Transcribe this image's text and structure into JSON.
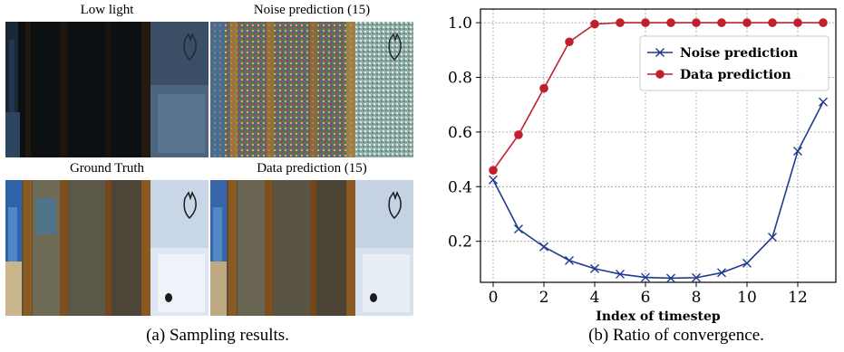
{
  "left_panel": {
    "images": [
      {
        "title": "Low light"
      },
      {
        "title": "Noise prediction (15)"
      },
      {
        "title": "Ground Truth"
      },
      {
        "title": "Data prediction (15)"
      }
    ],
    "caption": "(a) Sampling results."
  },
  "right_panel": {
    "caption": "(b) Ratio of convergence."
  },
  "chart_data": {
    "type": "line",
    "xlabel": "Index of timestep",
    "ylabel": "",
    "xlim": [
      -0.5,
      13.5
    ],
    "ylim": [
      0.05,
      1.05
    ],
    "xticks": [
      0,
      2,
      4,
      6,
      8,
      10,
      12
    ],
    "yticks": [
      0.2,
      0.4,
      0.6,
      0.8,
      1.0
    ],
    "ytick_labels": [
      "0.2",
      "0.4",
      "0.6",
      "0.8",
      "1.0"
    ],
    "grid": true,
    "legend_position": "top-right",
    "x": [
      0,
      1,
      2,
      3,
      4,
      5,
      6,
      7,
      8,
      9,
      10,
      11,
      12,
      13
    ],
    "series": [
      {
        "name": "Noise prediction",
        "marker": "x",
        "color": "#1f3a8f",
        "values": [
          0.425,
          0.245,
          0.18,
          0.13,
          0.1,
          0.08,
          0.068,
          0.065,
          0.067,
          0.085,
          0.12,
          0.215,
          0.53,
          0.71
        ]
      },
      {
        "name": "Data prediction",
        "marker": "circle",
        "color": "#c0202e",
        "values": [
          0.46,
          0.59,
          0.76,
          0.93,
          0.995,
          1.0,
          1.0,
          1.0,
          1.0,
          1.0,
          1.0,
          1.0,
          1.0,
          1.0
        ]
      }
    ]
  }
}
